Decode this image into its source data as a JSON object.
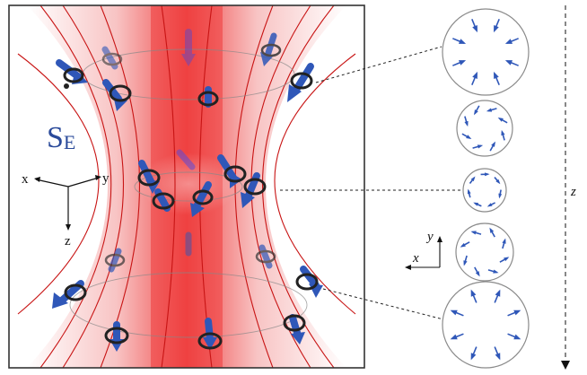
{
  "panel": {
    "label_main": "S",
    "label_sub": "E",
    "colors": {
      "beam_core": "#f04a4a",
      "beam_edge": "#ffffff",
      "field_line": "#cc1010",
      "arrow": "#2f57b8",
      "ring": "#333333",
      "frame": "#333333"
    }
  },
  "axes_inset": {
    "x": "x",
    "y": "y",
    "z": "z"
  },
  "cross_section_axes": {
    "x": "x",
    "y": "y"
  },
  "z_axis": {
    "label": "z"
  },
  "cross_sections": [
    {
      "id": "top",
      "pattern": "inward"
    },
    {
      "id": "upper",
      "pattern": "swirl-ccw"
    },
    {
      "id": "waist",
      "pattern": "swirl-tangential"
    },
    {
      "id": "lower",
      "pattern": "swirl-cw"
    },
    {
      "id": "bottom",
      "pattern": "outward"
    }
  ]
}
